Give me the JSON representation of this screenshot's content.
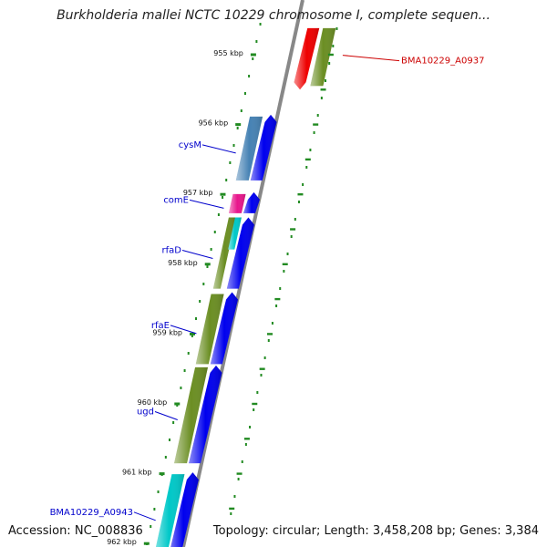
{
  "title": "Burkholderia mallei NCTC 10229 chromosome I, complete sequen...",
  "footer": {
    "accession_label": "Accession:",
    "accession": "NC_008836",
    "topology_text": "Topology: circular; Length: 3,458,208 bp; Genes: 3,384"
  },
  "colors": {
    "backbone": "#888888",
    "forward_gene": "#0000ee",
    "reverse_gene": "#ee0000",
    "cds_olive": "#6b8e23",
    "cds_steel": "#4682b4",
    "cds_cyan": "#00c8c8",
    "cds_pink": "#e8168c",
    "label_blue": "#0000cc",
    "label_red": "#cc0000",
    "tick_green": "#228b22"
  },
  "ticks": [
    {
      "kbp": 955,
      "label": "955 kbp"
    },
    {
      "kbp": 956,
      "label": "956 kbp"
    },
    {
      "kbp": 957,
      "label": "957 kbp"
    },
    {
      "kbp": 958,
      "label": "958 kbp"
    },
    {
      "kbp": 959,
      "label": "959 kbp"
    },
    {
      "kbp": 960,
      "label": "960 kbp"
    },
    {
      "kbp": 961,
      "label": "961 kbp"
    },
    {
      "kbp": 962,
      "label": "962 kbp"
    }
  ],
  "genes": [
    {
      "name": "BMA10229_A0937",
      "strand": "reverse",
      "start_kbp": 954.62,
      "end_kbp": 955.5,
      "color": "reverse_gene",
      "cds_color": "cds_olive",
      "labelled": true
    },
    {
      "name": "cysM",
      "strand": "forward",
      "start_kbp": 955.86,
      "end_kbp": 956.8,
      "color": "forward_gene",
      "cds_color": "cds_steel",
      "labelled": true
    },
    {
      "name": "comE",
      "strand": "forward",
      "start_kbp": 956.97,
      "end_kbp": 957.27,
      "color": "forward_gene",
      "cds_color": "cds_pink",
      "labelled": true
    },
    {
      "name": "rfaD",
      "strand": "forward",
      "start_kbp": 957.33,
      "end_kbp": 958.35,
      "color": "forward_gene",
      "cds_color": "cds_olive",
      "cds2_color": "cds_cyan",
      "labelled": true
    },
    {
      "name": "rfaE",
      "strand": "forward",
      "start_kbp": 958.4,
      "end_kbp": 959.43,
      "color": "forward_gene",
      "cds_color": "cds_olive",
      "labelled": true
    },
    {
      "name": "ugd",
      "strand": "forward",
      "start_kbp": 959.45,
      "end_kbp": 960.85,
      "color": "forward_gene",
      "cds_color": "cds_olive",
      "labelled": true
    },
    {
      "name": "BMA10229_A0943",
      "strand": "forward",
      "start_kbp": 960.98,
      "end_kbp": 962.2,
      "color": "forward_gene",
      "cds_color": "cds_cyan",
      "labelled": true
    }
  ]
}
